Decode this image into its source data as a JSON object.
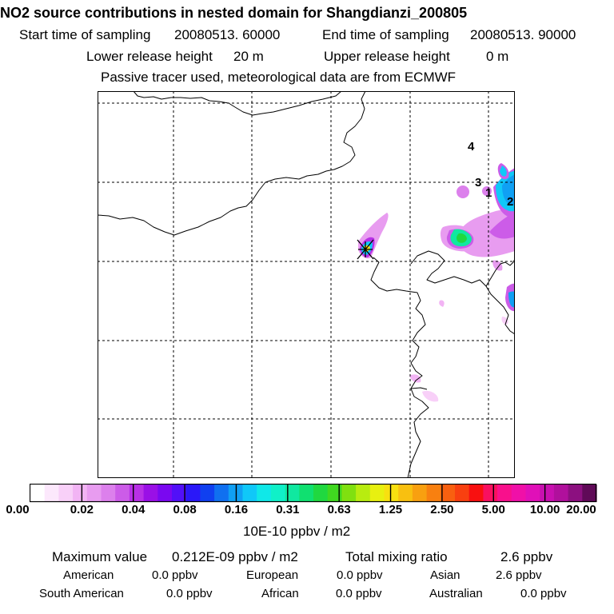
{
  "title": "NO2 source contributions in nested domain for Shangdianzi_200805",
  "sampling": {
    "start_label": "Start time of sampling",
    "start_value": "20080513. 60000",
    "end_label": "End time of sampling",
    "end_value": "20080513. 90000"
  },
  "release": {
    "lower_label": "Lower release height",
    "lower_value": "20 m",
    "upper_label": "Upper release height",
    "upper_value": "0 m"
  },
  "note": "Passive tracer used, meteorological data are from ECMWF",
  "map": {
    "region_labels": [
      "1",
      "2",
      "3",
      "4"
    ],
    "receptor_icon": "station-cross-marker-icon",
    "colors": {
      "frame": "#000000",
      "grid": "#000000",
      "coast": "#000000"
    }
  },
  "colorbar": {
    "unit": "10E-10 ppbv / m2",
    "ticks": [
      "0.00",
      "0.02",
      "0.04",
      "0.08",
      "0.16",
      "0.31",
      "0.63",
      "1.25",
      "2.50",
      "5.00",
      "10.00",
      "20.00"
    ],
    "colors": [
      "#ffffff",
      "#fce8fc",
      "#f8d0f8",
      "#f2b4f4",
      "#e89cf0",
      "#dc80ec",
      "#cc5ce8",
      "#b830e6",
      "#9a10e6",
      "#7a08f0",
      "#5210f8",
      "#2a18f8",
      "#1040f0",
      "#1070f0",
      "#10a0f4",
      "#10c8f8",
      "#10e8e8",
      "#10f0c8",
      "#10e8a0",
      "#10e070",
      "#20d840",
      "#40d820",
      "#80e010",
      "#b8ec10",
      "#e8f010",
      "#f8e010",
      "#f8c010",
      "#f8a010",
      "#f88010",
      "#f86010",
      "#f84010",
      "#f81010",
      "#f81060",
      "#f8108c",
      "#f010a8",
      "#e010b8",
      "#c810b0",
      "#b0109c",
      "#8c1080",
      "#600a58"
    ]
  },
  "summary": {
    "max_label": "Maximum value",
    "max_value": "0.212E-09 ppbv / m2",
    "total_label": "Total mixing ratio",
    "total_value": "2.6 ppbv",
    "regions": [
      {
        "name": "American",
        "value": "0.0 ppbv"
      },
      {
        "name": "European",
        "value": "0.0 ppbv"
      },
      {
        "name": "Asian",
        "value": "2.6 ppbv"
      },
      {
        "name": "South American",
        "value": "0.0 ppbv"
      },
      {
        "name": "African",
        "value": "0.0 ppbv"
      },
      {
        "name": "Australian",
        "value": "0.0 ppbv"
      }
    ]
  }
}
